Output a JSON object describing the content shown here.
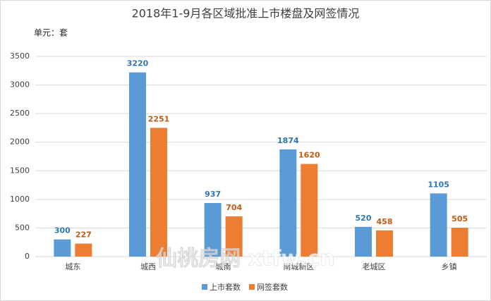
{
  "chart_data": {
    "type": "bar",
    "title": "2018年1-9月各区域批准上市楼盘及网签情况",
    "unit_label": "单元：套",
    "watermark": "仙桃房网 xtfw.cn",
    "categories": [
      "城东",
      "城西",
      "城南",
      "南城新区",
      "老城区",
      "乡镇"
    ],
    "series": [
      {
        "name": "上市套数",
        "color": "#5b9bd5",
        "label_color": "#2e75b6",
        "values": [
          300,
          3220,
          937,
          1874,
          520,
          1105
        ]
      },
      {
        "name": "网签套数",
        "color": "#ed7d31",
        "label_color": "#c55a11",
        "values": [
          227,
          2251,
          704,
          1620,
          458,
          505
        ]
      }
    ],
    "ylim": [
      0,
      3500
    ],
    "yticks": [
      0,
      500,
      1000,
      1500,
      2000,
      2500,
      3000,
      3500
    ],
    "grid": true,
    "legend": "bottom"
  }
}
